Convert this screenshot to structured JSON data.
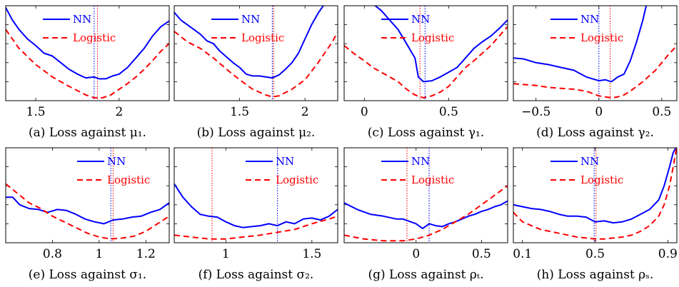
{
  "chart_data": [
    {
      "type": "line",
      "caption": "(a) Loss against μ₁.",
      "xlim": [
        1.32,
        2.3
      ],
      "ylim": [
        0,
        1
      ],
      "xticks": [
        1.5,
        2
      ],
      "xticklabels": [
        "1.5",
        "2"
      ],
      "vlines": [
        {
          "x": 1.85,
          "color": "#0000ff"
        },
        {
          "x": 1.87,
          "color": "#ff0000"
        }
      ],
      "legend": "top-left",
      "series": [
        {
          "name": "NN",
          "color": "#0000ff",
          "style": "solid",
          "x": [
            1.32,
            1.36,
            1.4,
            1.45,
            1.5,
            1.55,
            1.6,
            1.65,
            1.7,
            1.75,
            1.8,
            1.85,
            1.88,
            1.92,
            1.96,
            2.0,
            2.05,
            2.1,
            2.15,
            2.2,
            2.25,
            2.3
          ],
          "y": [
            0.98,
            0.85,
            0.75,
            0.65,
            0.58,
            0.5,
            0.47,
            0.4,
            0.33,
            0.28,
            0.24,
            0.25,
            0.23,
            0.23,
            0.26,
            0.28,
            0.35,
            0.45,
            0.55,
            0.68,
            0.78,
            0.84
          ]
        },
        {
          "name": "Logistic",
          "color": "#ff0000",
          "style": "dashed",
          "x": [
            1.32,
            1.4,
            1.5,
            1.6,
            1.7,
            1.8,
            1.85,
            1.9,
            1.95,
            2.0,
            2.05,
            2.1,
            2.15,
            2.2,
            2.25,
            2.3
          ],
          "y": [
            0.75,
            0.55,
            0.38,
            0.25,
            0.15,
            0.06,
            0.03,
            0.03,
            0.06,
            0.12,
            0.18,
            0.25,
            0.33,
            0.42,
            0.52,
            0.6
          ]
        }
      ]
    },
    {
      "type": "line",
      "caption": "(b) Loss against μ₂.",
      "xlim": [
        1.0,
        2.25
      ],
      "ylim": [
        0,
        1
      ],
      "xticks": [
        1.5,
        2
      ],
      "xticklabels": [
        "1.5",
        "2"
      ],
      "vlines": [
        {
          "x": 1.75,
          "color": "#0000ff"
        },
        {
          "x": 1.76,
          "color": "#ff0000"
        }
      ],
      "legend": "top-left",
      "series": [
        {
          "name": "NN",
          "color": "#0000ff",
          "style": "solid",
          "x": [
            1.0,
            1.05,
            1.1,
            1.15,
            1.2,
            1.25,
            1.3,
            1.35,
            1.4,
            1.45,
            1.5,
            1.55,
            1.6,
            1.65,
            1.7,
            1.75,
            1.8,
            1.85,
            1.9,
            1.95,
            2.0,
            2.05,
            2.1,
            2.15
          ],
          "y": [
            0.93,
            0.85,
            0.8,
            0.75,
            0.7,
            0.63,
            0.6,
            0.52,
            0.46,
            0.4,
            0.35,
            0.28,
            0.26,
            0.26,
            0.25,
            0.24,
            0.27,
            0.33,
            0.4,
            0.5,
            0.65,
            0.8,
            0.92,
            1.02
          ]
        },
        {
          "name": "Logistic",
          "color": "#ff0000",
          "style": "dashed",
          "x": [
            1.0,
            1.1,
            1.2,
            1.3,
            1.4,
            1.5,
            1.6,
            1.7,
            1.75,
            1.8,
            1.9,
            2.0,
            2.1,
            2.2,
            2.25
          ],
          "y": [
            0.73,
            0.62,
            0.55,
            0.45,
            0.33,
            0.22,
            0.12,
            0.06,
            0.04,
            0.05,
            0.12,
            0.22,
            0.4,
            0.6,
            0.72
          ]
        }
      ]
    },
    {
      "type": "line",
      "caption": "(c) Loss against γ₁.",
      "xlim": [
        -0.12,
        0.85
      ],
      "ylim": [
        0,
        1
      ],
      "xticks": [
        0,
        0.5
      ],
      "xticklabels": [
        "0",
        "0.5"
      ],
      "vlines": [
        {
          "x": 0.33,
          "color": "#ff0000"
        },
        {
          "x": 0.36,
          "color": "#0000ff"
        }
      ],
      "legend": "top-left",
      "series": [
        {
          "name": "NN",
          "color": "#0000ff",
          "style": "solid",
          "x": [
            0.05,
            0.1,
            0.15,
            0.2,
            0.25,
            0.3,
            0.32,
            0.35,
            0.4,
            0.45,
            0.5,
            0.55,
            0.6,
            0.65,
            0.7,
            0.75,
            0.8,
            0.85
          ],
          "y": [
            1.02,
            0.95,
            0.85,
            0.75,
            0.6,
            0.45,
            0.25,
            0.2,
            0.21,
            0.25,
            0.3,
            0.35,
            0.45,
            0.55,
            0.62,
            0.68,
            0.76,
            0.85
          ]
        },
        {
          "name": "Logistic",
          "color": "#ff0000",
          "style": "dashed",
          "x": [
            -0.12,
            -0.05,
            0.0,
            0.05,
            0.1,
            0.15,
            0.2,
            0.25,
            0.3,
            0.35,
            0.4,
            0.45,
            0.5,
            0.55,
            0.6,
            0.65,
            0.7,
            0.75,
            0.8,
            0.85
          ],
          "y": [
            0.58,
            0.48,
            0.42,
            0.35,
            0.3,
            0.25,
            0.2,
            0.12,
            0.06,
            0.03,
            0.05,
            0.09,
            0.15,
            0.25,
            0.35,
            0.42,
            0.5,
            0.58,
            0.68,
            0.78
          ]
        }
      ]
    },
    {
      "type": "line",
      "caption": "(d) Loss against γ₂.",
      "xlim": [
        -0.68,
        0.62
      ],
      "ylim": [
        0,
        1
      ],
      "xticks": [
        -0.5,
        0,
        0.5
      ],
      "xticklabels": [
        "−0.5",
        "0",
        "0.5"
      ],
      "vlines": [
        {
          "x": 0.0,
          "color": "#0000ff"
        },
        {
          "x": 0.09,
          "color": "#ff0000"
        }
      ],
      "legend": "top-left",
      "series": [
        {
          "name": "NN",
          "color": "#0000ff",
          "style": "solid",
          "x": [
            -0.68,
            -0.6,
            -0.5,
            -0.4,
            -0.3,
            -0.2,
            -0.1,
            0.0,
            0.05,
            0.1,
            0.15,
            0.2,
            0.25,
            0.3,
            0.35,
            0.38
          ],
          "y": [
            0.45,
            0.44,
            0.4,
            0.38,
            0.35,
            0.32,
            0.25,
            0.21,
            0.22,
            0.2,
            0.25,
            0.28,
            0.42,
            0.62,
            0.85,
            1.02
          ]
        },
        {
          "name": "Logistic",
          "color": "#ff0000",
          "style": "dashed",
          "x": [
            -0.68,
            -0.6,
            -0.5,
            -0.4,
            -0.3,
            -0.2,
            -0.1,
            0.0,
            0.05,
            0.1,
            0.15,
            0.2,
            0.25,
            0.3,
            0.35,
            0.4,
            0.45,
            0.5,
            0.55,
            0.62
          ],
          "y": [
            0.18,
            0.17,
            0.16,
            0.14,
            0.13,
            0.12,
            0.1,
            0.05,
            0.04,
            0.03,
            0.04,
            0.06,
            0.1,
            0.15,
            0.2,
            0.26,
            0.32,
            0.4,
            0.48,
            0.58
          ]
        }
      ]
    },
    {
      "type": "line",
      "caption": "(e) Loss against σ₁.",
      "xlim": [
        0.6,
        1.3
      ],
      "ylim": [
        0,
        1
      ],
      "xticks": [
        0.8,
        1,
        1.2
      ],
      "xticklabels": [
        "0.8",
        "1",
        "1.2"
      ],
      "vlines": [
        {
          "x": 1.05,
          "color": "#0000ff"
        },
        {
          "x": 1.06,
          "color": "#ff0000"
        }
      ],
      "legend": "top-right",
      "series": [
        {
          "name": "NN",
          "color": "#0000ff",
          "style": "solid",
          "x": [
            0.6,
            0.63,
            0.66,
            0.7,
            0.74,
            0.78,
            0.82,
            0.86,
            0.9,
            0.94,
            0.98,
            1.02,
            1.06,
            1.1,
            1.14,
            1.18,
            1.22,
            1.26,
            1.3
          ],
          "y": [
            0.48,
            0.48,
            0.4,
            0.36,
            0.35,
            0.32,
            0.35,
            0.34,
            0.3,
            0.25,
            0.22,
            0.2,
            0.24,
            0.25,
            0.27,
            0.28,
            0.32,
            0.35,
            0.42
          ]
        },
        {
          "name": "Logistic",
          "color": "#ff0000",
          "style": "dashed",
          "x": [
            0.6,
            0.65,
            0.7,
            0.75,
            0.8,
            0.85,
            0.9,
            0.95,
            1.0,
            1.05,
            1.1,
            1.15,
            1.2,
            1.25,
            1.3
          ],
          "y": [
            0.62,
            0.52,
            0.42,
            0.36,
            0.28,
            0.22,
            0.16,
            0.1,
            0.06,
            0.04,
            0.05,
            0.07,
            0.12,
            0.2,
            0.28
          ]
        }
      ]
    },
    {
      "type": "line",
      "caption": "(f) Loss against σ₂.",
      "xlim": [
        0.7,
        1.65
      ],
      "ylim": [
        0,
        1
      ],
      "xticks": [
        1,
        1.5
      ],
      "xticklabels": [
        "1",
        "1.5"
      ],
      "vlines": [
        {
          "x": 0.92,
          "color": "#ff0000"
        },
        {
          "x": 1.3,
          "color": "#0000ff"
        }
      ],
      "legend": "top-right",
      "series": [
        {
          "name": "NN",
          "color": "#0000ff",
          "style": "solid",
          "x": [
            0.7,
            0.75,
            0.8,
            0.85,
            0.9,
            0.95,
            1.0,
            1.05,
            1.1,
            1.15,
            1.2,
            1.25,
            1.3,
            1.35,
            1.4,
            1.45,
            1.5,
            1.55,
            1.6,
            1.65
          ],
          "y": [
            0.62,
            0.48,
            0.38,
            0.3,
            0.28,
            0.27,
            0.22,
            0.18,
            0.16,
            0.17,
            0.18,
            0.2,
            0.18,
            0.22,
            0.2,
            0.25,
            0.26,
            0.24,
            0.28,
            0.35
          ]
        },
        {
          "name": "Logistic",
          "color": "#ff0000",
          "style": "dashed",
          "x": [
            0.7,
            0.8,
            0.9,
            1.0,
            1.1,
            1.2,
            1.3,
            1.4,
            1.5,
            1.6,
            1.65
          ],
          "y": [
            0.08,
            0.06,
            0.04,
            0.04,
            0.06,
            0.08,
            0.11,
            0.14,
            0.2,
            0.25,
            0.28
          ]
        }
      ]
    },
    {
      "type": "line",
      "caption": "(g) Loss against ρₜ.",
      "xlim": [
        -0.55,
        0.7
      ],
      "ylim": [
        0,
        1
      ],
      "xticks": [
        0,
        0.5
      ],
      "xticklabels": [
        "0",
        "0.5"
      ],
      "vlines": [
        {
          "x": -0.07,
          "color": "#ff0000"
        },
        {
          "x": 0.1,
          "color": "#0000ff"
        }
      ],
      "legend": "top-left",
      "series": [
        {
          "name": "NN",
          "color": "#0000ff",
          "style": "solid",
          "x": [
            -0.55,
            -0.45,
            -0.35,
            -0.25,
            -0.15,
            -0.1,
            0.0,
            0.05,
            0.1,
            0.15,
            0.2,
            0.25,
            0.3,
            0.35,
            0.4,
            0.45,
            0.5,
            0.55,
            0.6,
            0.65,
            0.7
          ],
          "y": [
            0.42,
            0.35,
            0.3,
            0.28,
            0.25,
            0.25,
            0.2,
            0.15,
            0.2,
            0.18,
            0.17,
            0.2,
            0.22,
            0.25,
            0.28,
            0.3,
            0.33,
            0.35,
            0.38,
            0.4,
            0.44
          ]
        },
        {
          "name": "Logistic",
          "color": "#ff0000",
          "style": "dashed",
          "x": [
            -0.55,
            -0.4,
            -0.25,
            -0.1,
            0.0,
            0.1,
            0.2,
            0.3,
            0.4,
            0.5,
            0.6,
            0.7
          ],
          "y": [
            0.08,
            0.04,
            0.02,
            0.02,
            0.04,
            0.08,
            0.14,
            0.22,
            0.3,
            0.4,
            0.5,
            0.6
          ]
        }
      ]
    },
    {
      "type": "line",
      "caption": "(h) Loss against ρₛ.",
      "xlim": [
        0.05,
        0.95
      ],
      "ylim": [
        0,
        1
      ],
      "xticks": [
        0.1,
        0.5,
        0.9
      ],
      "xticklabels": [
        "0.1",
        "0.5",
        "0.9"
      ],
      "vlines": [
        {
          "x": 0.495,
          "color": "#0000ff"
        },
        {
          "x": 0.505,
          "color": "#ff0000"
        }
      ],
      "legend": "top-left",
      "series": [
        {
          "name": "NN",
          "color": "#0000ff",
          "style": "solid",
          "x": [
            0.05,
            0.1,
            0.15,
            0.2,
            0.25,
            0.3,
            0.35,
            0.4,
            0.45,
            0.5,
            0.55,
            0.6,
            0.65,
            0.7,
            0.75,
            0.8,
            0.85,
            0.88,
            0.91,
            0.93,
            0.95
          ],
          "y": [
            0.4,
            0.38,
            0.36,
            0.35,
            0.33,
            0.3,
            0.28,
            0.28,
            0.27,
            0.22,
            0.23,
            0.21,
            0.22,
            0.25,
            0.3,
            0.35,
            0.45,
            0.6,
            0.8,
            0.95,
            1.02
          ]
        },
        {
          "name": "Logistic",
          "color": "#ff0000",
          "style": "dashed",
          "x": [
            0.05,
            0.1,
            0.15,
            0.2,
            0.3,
            0.4,
            0.5,
            0.55,
            0.6,
            0.65,
            0.7,
            0.75,
            0.8,
            0.85,
            0.88,
            0.91,
            0.93,
            0.95
          ],
          "y": [
            0.32,
            0.22,
            0.18,
            0.14,
            0.1,
            0.06,
            0.04,
            0.04,
            0.05,
            0.06,
            0.08,
            0.12,
            0.18,
            0.28,
            0.4,
            0.6,
            0.8,
            1.02
          ]
        }
      ]
    }
  ]
}
